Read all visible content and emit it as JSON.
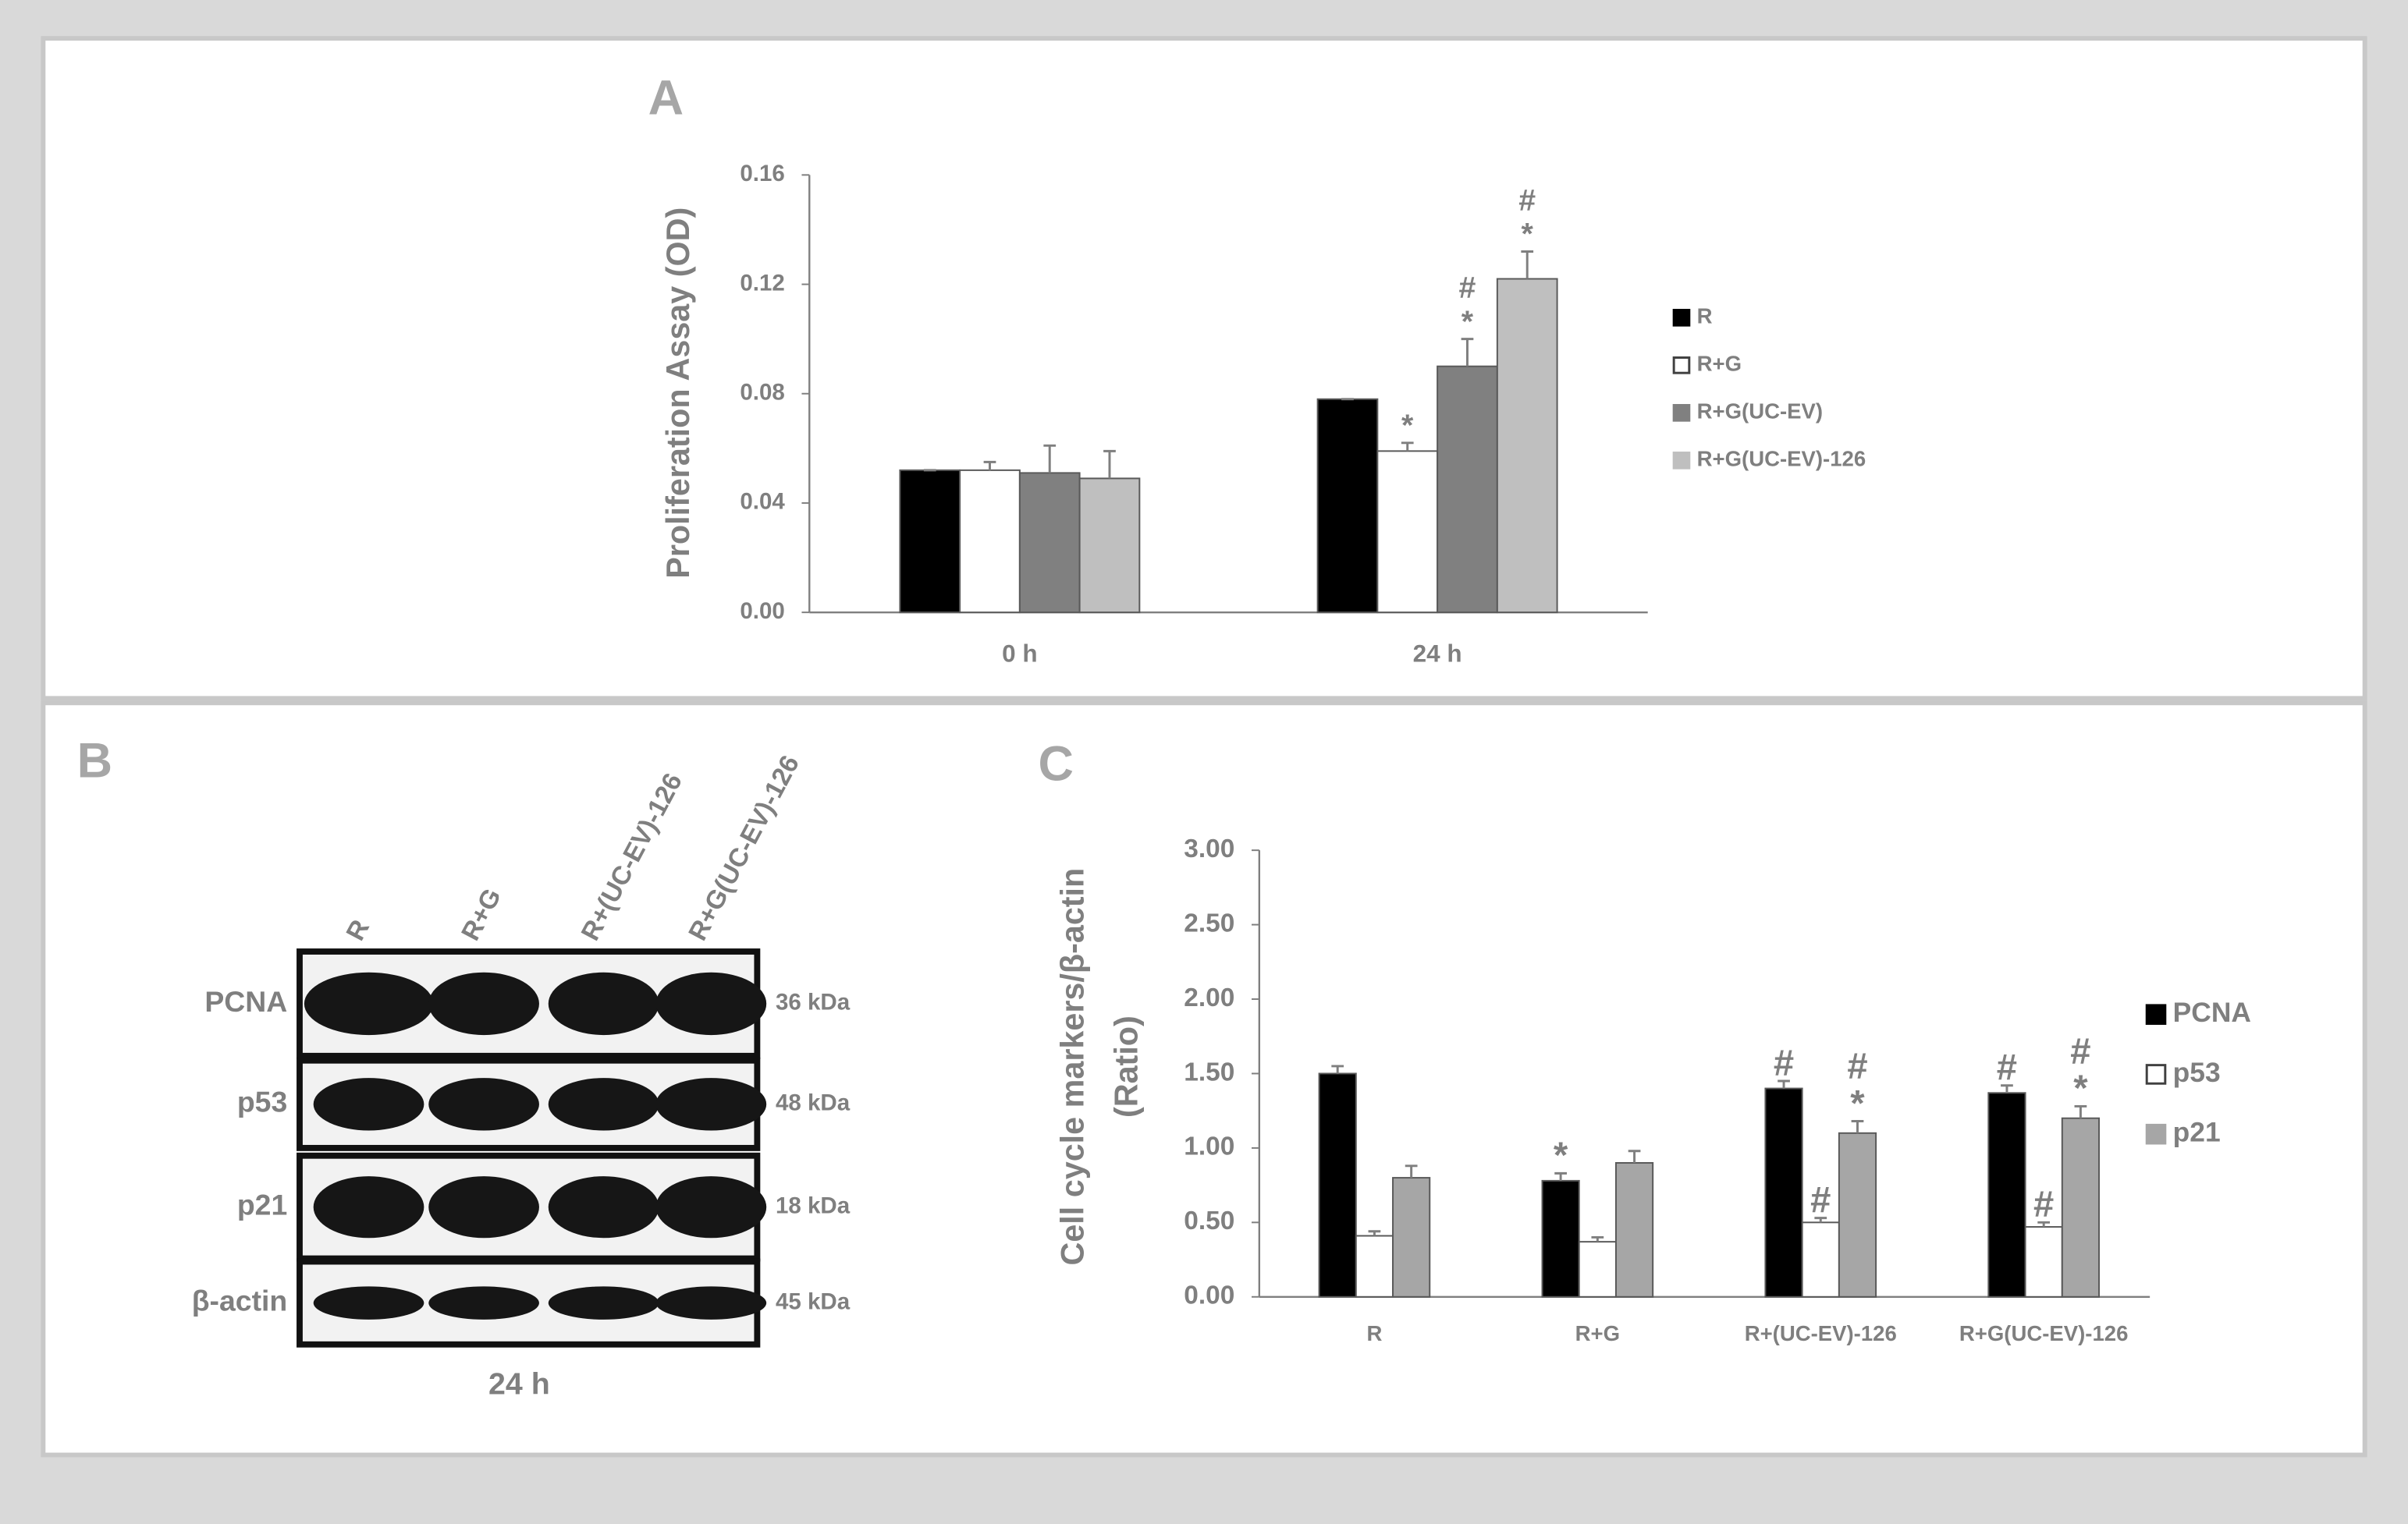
{
  "panels": {
    "a": "A",
    "b": "B",
    "c": "C"
  },
  "chart_data": [
    {
      "type": "bar",
      "ylabel": "Proliferation Assay (OD)",
      "categories": [
        "0 h",
        "24 h"
      ],
      "ylim": [
        0,
        0.16
      ],
      "yticks": [
        {
          "value": 0,
          "label": "0.00"
        },
        {
          "value": 0.04,
          "label": "0.04"
        },
        {
          "value": 0.08,
          "label": "0.08"
        },
        {
          "value": 0.12,
          "label": "0.12"
        },
        {
          "value": 0.16,
          "label": "0.16"
        }
      ],
      "grid": false,
      "legend": "right",
      "series": [
        {
          "name": "R",
          "color": "#000000",
          "values": [
            0.052,
            0.078
          ],
          "errors": [
            0,
            0
          ],
          "significance": [
            [],
            []
          ]
        },
        {
          "name": "R+G",
          "color": "#ffffff",
          "values": [
            0.052,
            0.059
          ],
          "errors": [
            0.003,
            0.003
          ],
          "significance": [
            [],
            [
              "*"
            ]
          ]
        },
        {
          "name": "R+G(UC-EV)",
          "color": "#808080",
          "values": [
            0.051,
            0.09
          ],
          "errors": [
            0.01,
            0.01
          ],
          "significance": [
            [],
            [
              "*",
              "#"
            ]
          ]
        },
        {
          "name": "R+G(UC-EV)-126",
          "color": "#bfbfbf",
          "values": [
            0.049,
            0.122
          ],
          "errors": [
            0.01,
            0.01
          ],
          "significance": [
            [],
            [
              "*",
              "#"
            ]
          ]
        }
      ]
    },
    {
      "type": "bar",
      "ylabel": [
        "Cell cycle markers/β-actin",
        "(Ratio)"
      ],
      "categories": [
        "R",
        "R+G",
        "R+(UC-EV)-126",
        "R+G(UC-EV)-126"
      ],
      "ylim": [
        0,
        3
      ],
      "yticks": [
        {
          "value": 0,
          "label": "0.00"
        },
        {
          "value": 0.5,
          "label": "0.50"
        },
        {
          "value": 1,
          "label": "1.00"
        },
        {
          "value": 1.5,
          "label": "1.50"
        },
        {
          "value": 2,
          "label": "2.00"
        },
        {
          "value": 2.5,
          "label": "2.50"
        },
        {
          "value": 3,
          "label": "3.00"
        }
      ],
      "grid": false,
      "legend": "right",
      "series": [
        {
          "name": "PCNA",
          "color": "#000000",
          "values": [
            1.5,
            0.78,
            1.4,
            1.37
          ],
          "errors": [
            0.05,
            0.05,
            0.05,
            0.05
          ],
          "significance": [
            [],
            [
              "*"
            ],
            [
              "#"
            ],
            [
              "#"
            ]
          ]
        },
        {
          "name": "p53",
          "color": "#ffffff",
          "values": [
            0.41,
            0.37,
            0.5,
            0.47
          ],
          "errors": [
            0.03,
            0.03,
            0.03,
            0.03
          ],
          "significance": [
            [],
            [],
            [
              "#"
            ],
            [
              "#"
            ]
          ]
        },
        {
          "name": "p21",
          "color": "#a6a6a6",
          "values": [
            0.8,
            0.9,
            1.1,
            1.2
          ],
          "errors": [
            0.08,
            0.08,
            0.08,
            0.08
          ],
          "significance": [
            [],
            [],
            [
              "*",
              "#"
            ],
            [
              "*",
              "#"
            ]
          ]
        }
      ]
    }
  ],
  "blot": {
    "lanes": [
      "R",
      "R+G",
      "R+(UC-EV)-126",
      "R+G(UC-EV)-126"
    ],
    "rows": [
      {
        "label": "PCNA",
        "size": "36 kDa"
      },
      {
        "label": "p53",
        "size": "48 kDa"
      },
      {
        "label": "p21",
        "size": "18 kDa"
      },
      {
        "label": "β-actin",
        "size": "45 kDa"
      }
    ],
    "time": "24 h"
  }
}
